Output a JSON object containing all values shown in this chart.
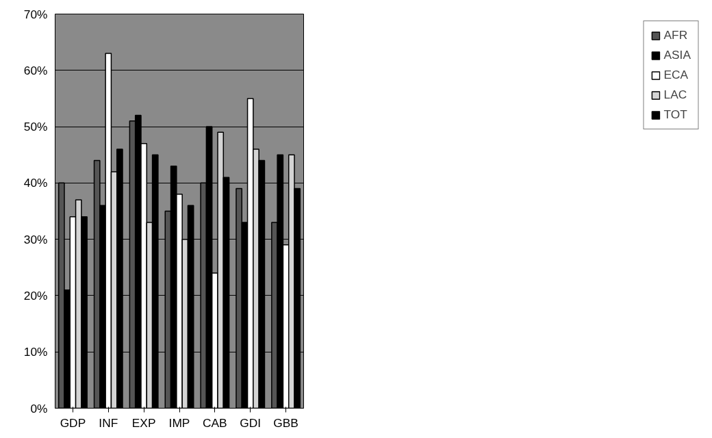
{
  "chart_data": {
    "type": "bar",
    "categories": [
      "GDP",
      "INF",
      "EXP",
      "IMP",
      "CAB",
      "GDI",
      "GBB"
    ],
    "series": [
      {
        "name": "AFR",
        "color": "#555555",
        "values": [
          40,
          44,
          51,
          35,
          40,
          39,
          33
        ]
      },
      {
        "name": "ASIA",
        "color": "#000000",
        "values": [
          21,
          36,
          52,
          43,
          50,
          33,
          45
        ]
      },
      {
        "name": "ECA",
        "color": "#ffffff",
        "values": [
          34,
          63,
          47,
          38,
          24,
          55,
          29
        ]
      },
      {
        "name": "LAC",
        "color": "#d4d4d4",
        "values": [
          37,
          42,
          33,
          30,
          49,
          46,
          45
        ]
      },
      {
        "name": "TOT",
        "color": "#000000",
        "values": [
          34,
          46,
          45,
          36,
          41,
          44,
          39
        ]
      }
    ],
    "ylim": [
      0,
      70
    ],
    "yticks": [
      {
        "value": 0,
        "label": "0%"
      },
      {
        "value": 10,
        "label": "10%"
      },
      {
        "value": 20,
        "label": "20%"
      },
      {
        "value": 30,
        "label": "30%"
      },
      {
        "value": 40,
        "label": "40%"
      },
      {
        "value": 50,
        "label": "50%"
      },
      {
        "value": 60,
        "label": "60%"
      },
      {
        "value": 70,
        "label": "70%"
      }
    ],
    "grid": "y",
    "legend": "right"
  }
}
